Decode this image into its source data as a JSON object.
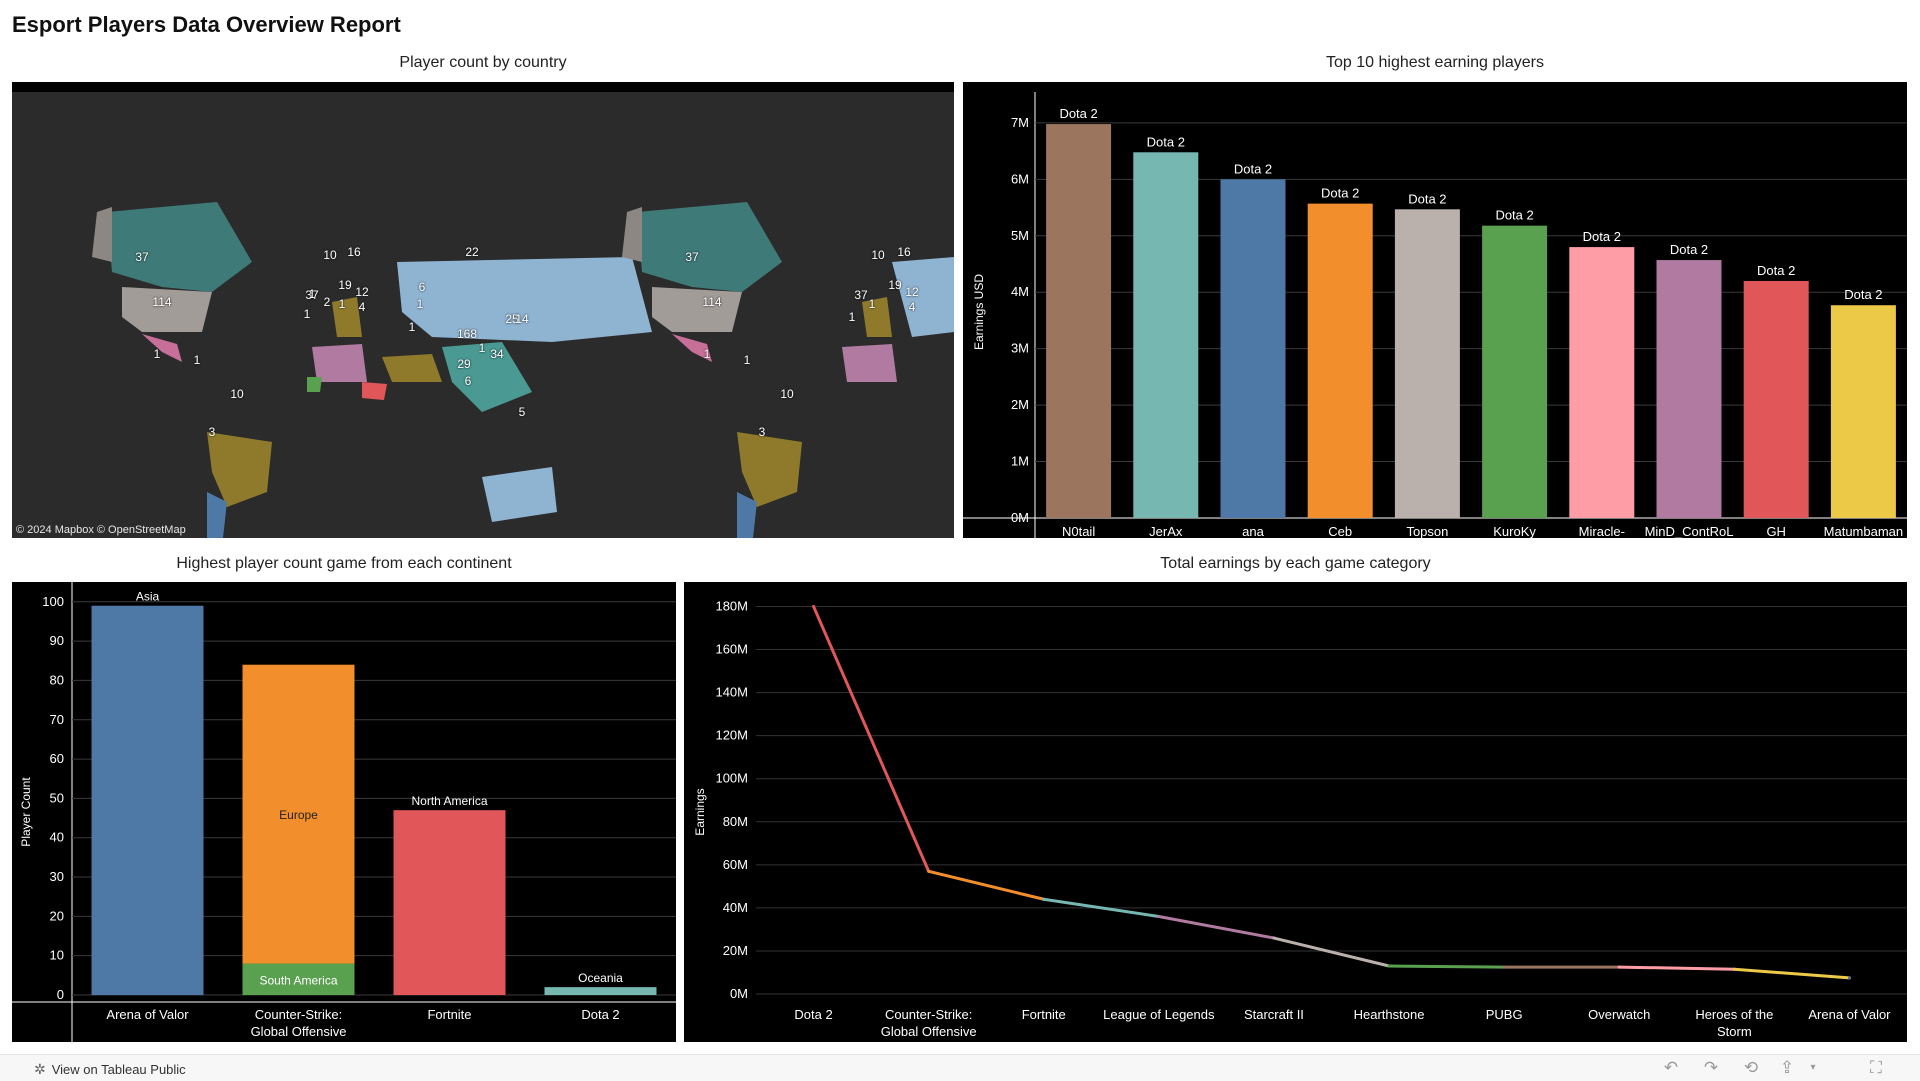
{
  "report": {
    "title": "Esport Players Data Overview Report"
  },
  "panels": {
    "map_title": "Player count by country",
    "bar_title": "Top 10 highest earning players",
    "continent_title": "Highest player count game from each continent",
    "line_title": "Total earnings by each game category"
  },
  "map": {
    "credit": "© 2024 Mapbox  © OpenStreetMap",
    "labels": [
      {
        "text": "37"
      },
      {
        "text": "114"
      },
      {
        "text": "1"
      },
      {
        "text": "1"
      },
      {
        "text": "10"
      },
      {
        "text": "3"
      },
      {
        "text": "22"
      },
      {
        "text": "168"
      },
      {
        "text": "6"
      },
      {
        "text": "5"
      },
      {
        "text": "10"
      },
      {
        "text": "16"
      },
      {
        "text": "37"
      },
      {
        "text": "19"
      },
      {
        "text": "12"
      },
      {
        "text": "4"
      },
      {
        "text": "2"
      },
      {
        "text": "1"
      },
      {
        "text": "1"
      },
      {
        "text": "1"
      },
      {
        "text": "1"
      },
      {
        "text": "1"
      },
      {
        "text": "25"
      },
      {
        "text": "14"
      },
      {
        "text": "29"
      },
      {
        "text": "34"
      },
      {
        "text": "6"
      },
      {
        "text": "1"
      },
      {
        "text": "37"
      },
      {
        "text": "114"
      },
      {
        "text": "1"
      },
      {
        "text": "1"
      },
      {
        "text": "10"
      },
      {
        "text": "3"
      },
      {
        "text": "10"
      },
      {
        "text": "16"
      },
      {
        "text": "37"
      },
      {
        "text": "19"
      },
      {
        "text": "12"
      },
      {
        "text": "4"
      },
      {
        "text": "1"
      },
      {
        "text": "1"
      }
    ]
  },
  "chart_data": [
    {
      "type": "bar",
      "title": "Top 10 highest earning players",
      "ylabel": "Earnings USD",
      "ylim": [
        0,
        7.3
      ],
      "yticks": [
        "0M",
        "1M",
        "2M",
        "3M",
        "4M",
        "5M",
        "6M",
        "7M"
      ],
      "categories": [
        "N0tail",
        "JerAx",
        "ana",
        "Ceb",
        "Topson",
        "KuroKy",
        "Miracle-",
        "MinD_ContRoL",
        "GH",
        "Matumbaman"
      ],
      "values": [
        6.98,
        6.48,
        6.0,
        5.57,
        5.47,
        5.18,
        4.8,
        4.57,
        4.2,
        3.77
      ],
      "labels": [
        "Dota 2",
        "Dota 2",
        "Dota 2",
        "Dota 2",
        "Dota 2",
        "Dota 2",
        "Dota 2",
        "Dota 2",
        "Dota 2",
        "Dota 2"
      ],
      "colors": [
        "#9c755f",
        "#76b7b2",
        "#4e79a7",
        "#f28e2b",
        "#bab0ac",
        "#59a14f",
        "#ff9da7",
        "#b07aa1",
        "#e15759",
        "#edc948"
      ]
    },
    {
      "type": "bar",
      "title": "Highest player count game from each continent",
      "ylabel": "Player Count",
      "ylim": [
        0,
        103
      ],
      "yticks": [
        "0",
        "10",
        "20",
        "30",
        "40",
        "50",
        "60",
        "70",
        "80",
        "90",
        "100"
      ],
      "categories": [
        "Arena of Valor",
        "Counter-Strike: Global Offensive",
        "Fortnite",
        "Dota 2"
      ],
      "stacks": [
        [
          {
            "name": "Asia",
            "value": 99,
            "color": "#4e79a7"
          }
        ],
        [
          {
            "name": "South America",
            "value": 8,
            "color": "#59a14f"
          },
          {
            "name": "Europe",
            "value": 76,
            "color": "#f28e2b"
          }
        ],
        [
          {
            "name": "North America",
            "value": 47,
            "color": "#e15759"
          }
        ],
        [
          {
            "name": "Oceania",
            "value": 2,
            "color": "#76b7b2"
          }
        ]
      ]
    },
    {
      "type": "line",
      "title": "Total earnings by each game category",
      "ylabel": "Earnings",
      "ylim": [
        0,
        183
      ],
      "yticks": [
        "0M",
        "20M",
        "40M",
        "60M",
        "80M",
        "100M",
        "120M",
        "140M",
        "160M",
        "180M"
      ],
      "categories": [
        "Dota 2",
        "Counter-Strike: Global Offensive",
        "Fortnite",
        "League of Legends",
        "Starcraft II",
        "Hearthstone",
        "PUBG",
        "Overwatch",
        "Heroes of the Storm",
        "Arena of Valor"
      ],
      "values": [
        180,
        57,
        44,
        36,
        26,
        13,
        12.5,
        12.5,
        11.5,
        7.5
      ],
      "colors": [
        "#e15759",
        "#f28e2b",
        "#76b7b2",
        "#b07aa1",
        "#bab0ac",
        "#59a14f",
        "#9c755f",
        "#ff9da7",
        "#edc948",
        "#4e79a7"
      ]
    }
  ],
  "footer": {
    "view_link": "View on Tableau Public"
  }
}
